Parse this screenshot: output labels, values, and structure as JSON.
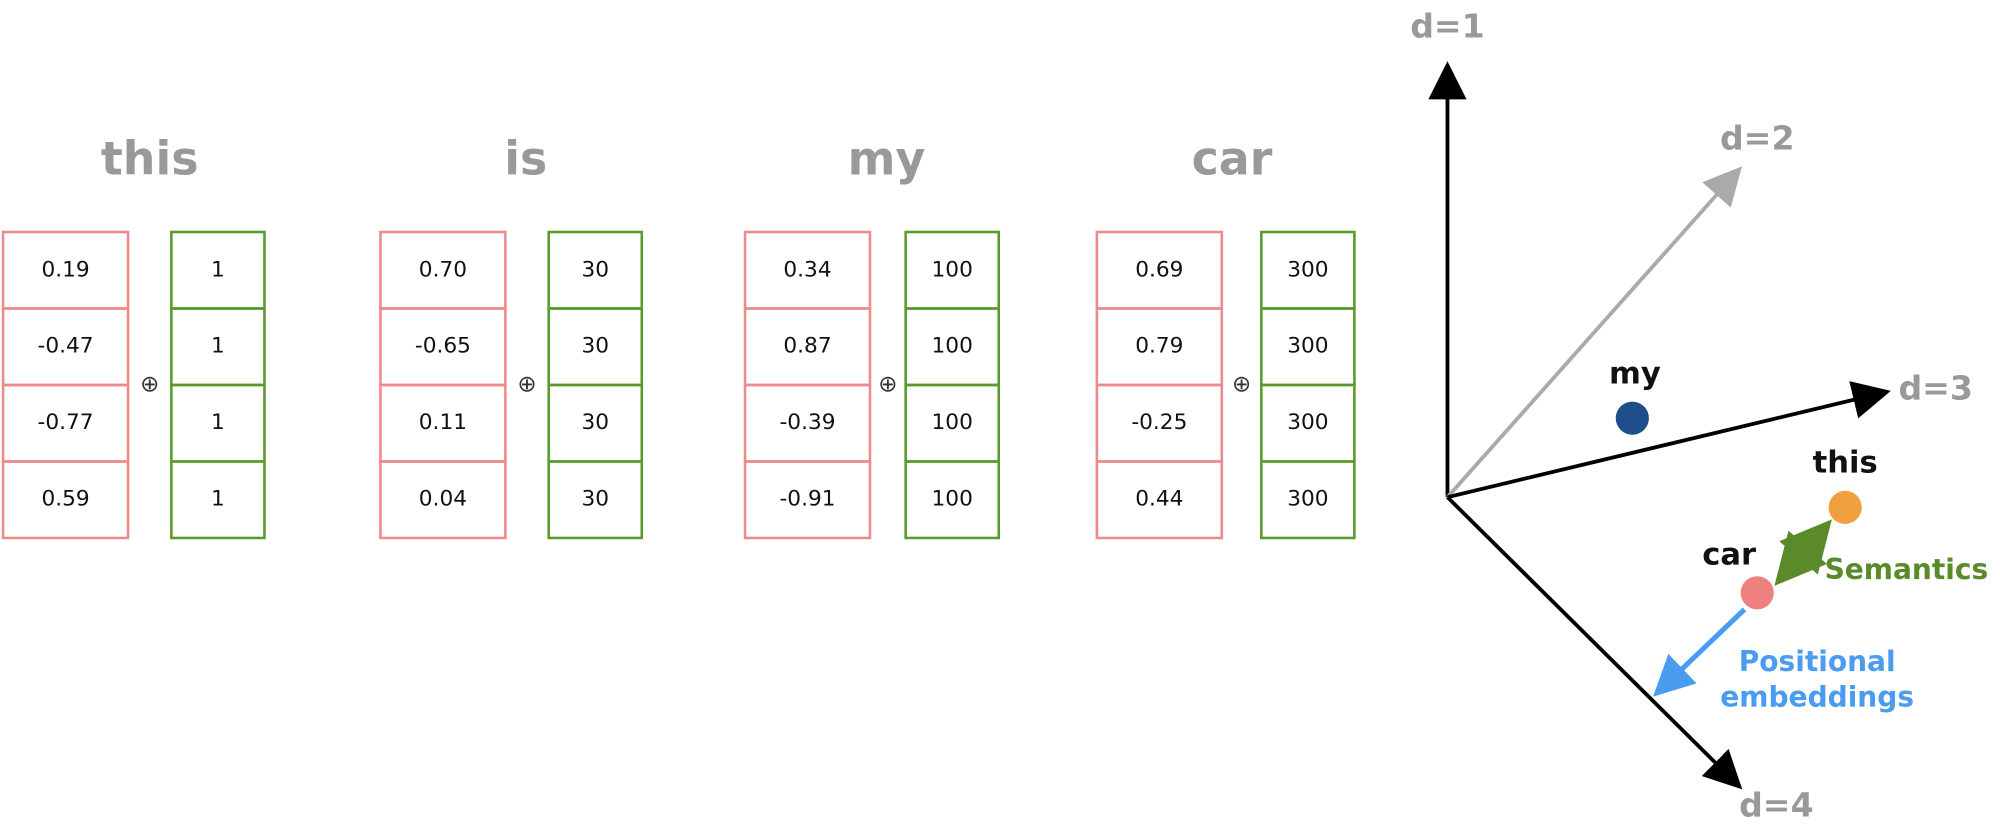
{
  "words": [
    {
      "label": "this",
      "embedding": [
        "0.19",
        "-0.47",
        "-0.77",
        "0.59"
      ],
      "position": [
        "1",
        "1",
        "1",
        "1"
      ]
    },
    {
      "label": "is",
      "embedding": [
        "0.70",
        "-0.65",
        "0.11",
        "0.04"
      ],
      "position": [
        "30",
        "30",
        "30",
        "30"
      ]
    },
    {
      "label": "my",
      "embedding": [
        "0.34",
        "0.87",
        "-0.39",
        "-0.91"
      ],
      "position": [
        "100",
        "100",
        "100",
        "100"
      ]
    },
    {
      "label": "car",
      "embedding": [
        "0.69",
        "0.79",
        "-0.25",
        "0.44"
      ],
      "position": [
        "300",
        "300",
        "300",
        "300"
      ]
    }
  ],
  "operator": "⊕",
  "space": {
    "axes": [
      "d=1",
      "d=2",
      "d=3",
      "d=4"
    ],
    "points": [
      "my",
      "this",
      "car"
    ],
    "semantics_label": "Semantics",
    "positional_label": [
      "Positional",
      "embeddings"
    ]
  }
}
